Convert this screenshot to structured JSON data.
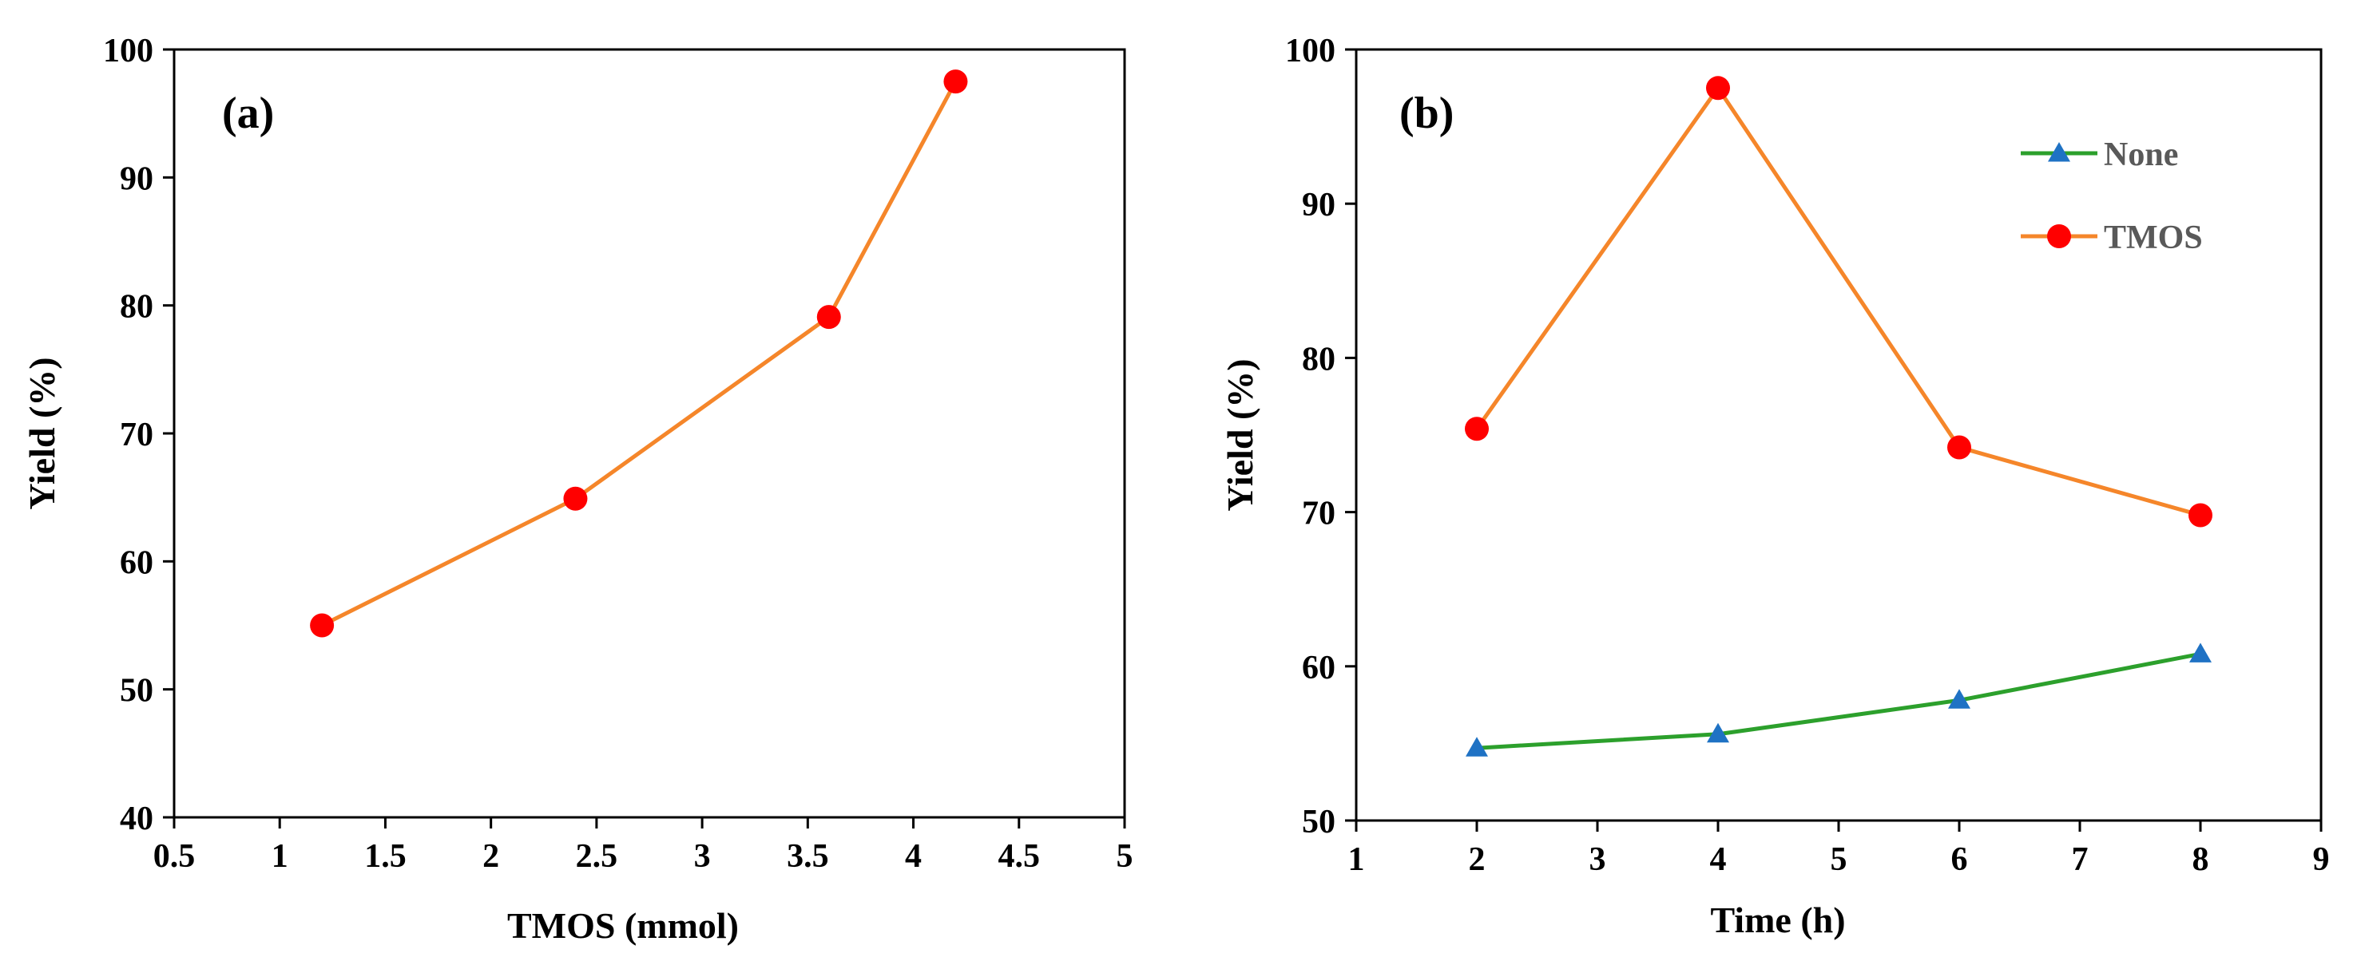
{
  "chart_data": [
    {
      "type": "line",
      "panel_label": "(a)",
      "xlabel": "TMOS (mmol)",
      "ylabel": "Yield (%)",
      "xlim": [
        0.5,
        5
      ],
      "ylim": [
        40,
        100
      ],
      "xticks": [
        "0.5",
        "1",
        "1.5",
        "2",
        "2.5",
        "3",
        "3.5",
        "4",
        "4.5",
        "5"
      ],
      "yticks": [
        "40",
        "50",
        "60",
        "70",
        "80",
        "90",
        "100"
      ],
      "grid": false,
      "legend": null,
      "series": [
        {
          "name": "TMOS",
          "color": "#f5862a",
          "marker": "circle",
          "marker_color": "#ff0000",
          "x": [
            1.2,
            2.4,
            3.6,
            4.2
          ],
          "values": [
            55.0,
            64.9,
            79.1,
            97.5
          ]
        }
      ]
    },
    {
      "type": "line",
      "panel_label": "(b)",
      "xlabel": "Time (h)",
      "ylabel": "Yield (%)",
      "xlim": [
        1,
        9
      ],
      "ylim": [
        50,
        100
      ],
      "xticks": [
        "1",
        "2",
        "3",
        "4",
        "5",
        "6",
        "7",
        "8",
        "9"
      ],
      "yticks": [
        "50",
        "60",
        "70",
        "80",
        "90",
        "100"
      ],
      "grid": false,
      "legend": "top-right",
      "series": [
        {
          "name": "None",
          "color": "#2ca02c",
          "marker": "triangle",
          "marker_color": "#1f72c4",
          "x": [
            2,
            4,
            6,
            8
          ],
          "values": [
            54.7,
            55.6,
            57.8,
            60.8
          ]
        },
        {
          "name": "TMOS",
          "color": "#f5862a",
          "marker": "circle",
          "marker_color": "#ff0000",
          "x": [
            2,
            4,
            6,
            8
          ],
          "values": [
            75.4,
            97.5,
            74.2,
            69.8
          ]
        }
      ]
    }
  ]
}
